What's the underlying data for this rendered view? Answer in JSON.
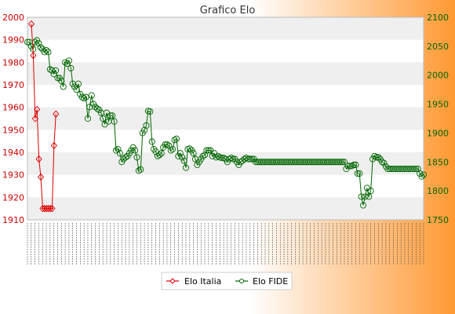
{
  "chart_data": {
    "type": "line",
    "title": "Grafico Elo",
    "y_left_range": [
      1910,
      2000
    ],
    "y_right_range": [
      1750,
      2100
    ],
    "y_left_ticks": [
      1910,
      1920,
      1930,
      1940,
      1950,
      1960,
      1970,
      1980,
      1990,
      2000
    ],
    "y_right_ticks": [
      1750,
      1800,
      1850,
      1900,
      1950,
      2000,
      2050,
      2100
    ],
    "grid": true,
    "legend_position": "bottom",
    "colors": {
      "elo_italia": "#dd0000",
      "elo_fide": "#006600",
      "band": "#efefef",
      "axis_left": "#cc0000",
      "axis_right": "#006600",
      "background_gradient_end": "#ff9933"
    },
    "series": [
      {
        "name": "Elo Italia",
        "axis": "left",
        "values": [
          1997,
          1983,
          1955,
          1959,
          1937,
          1929,
          1915,
          1915,
          1915,
          1915,
          1915,
          1915,
          1943,
          1957
        ]
      },
      {
        "name": "Elo FIDE",
        "axis": "right",
        "values": [
          2057,
          2057,
          2050,
          2045,
          2057,
          2060,
          2055,
          2048,
          2045,
          2040,
          2043,
          2040,
          2010,
          2008,
          2002,
          2008,
          1995,
          1995,
          1990,
          1980,
          2022,
          2020,
          2025,
          2012,
          1985,
          1980,
          1975,
          1985,
          1967,
          1962,
          1960,
          1962,
          1925,
          1945,
          1965,
          1950,
          1945,
          1942,
          1940,
          1935,
          1925,
          1915,
          1935,
          1920,
          1930,
          1930,
          1920,
          1870,
          1872,
          1865,
          1850,
          1855,
          1858,
          1860,
          1865,
          1870,
          1875,
          1870,
          1858,
          1835,
          1837,
          1900,
          1905,
          1913,
          1938,
          1937,
          1885,
          1872,
          1868,
          1860,
          1862,
          1865,
          1875,
          1880,
          1880,
          1878,
          1870,
          1872,
          1888,
          1890,
          1860,
          1865,
          1858,
          1852,
          1840,
          1872,
          1873,
          1870,
          1865,
          1855,
          1845,
          1850,
          1855,
          1860,
          1862,
          1870,
          1870,
          1870,
          1860,
          1865,
          1858,
          1860,
          1858,
          1857,
          1857,
          1855,
          1850,
          1855,
          1857,
          1855,
          1855,
          1850,
          1845,
          1850,
          1852,
          1855,
          1857,
          1855,
          1855,
          1855,
          1855,
          1850,
          1850,
          1850,
          1850,
          1850,
          1850,
          1850,
          1850,
          1850,
          1850,
          1850,
          1850,
          1850,
          1850,
          1850,
          1850,
          1850,
          1850,
          1850,
          1850,
          1850,
          1850,
          1850,
          1850,
          1850,
          1850,
          1850,
          1850,
          1850,
          1850,
          1850,
          1850,
          1850,
          1850,
          1850,
          1850,
          1850,
          1850,
          1850,
          1850,
          1850,
          1850,
          1850,
          1850,
          1850,
          1850,
          1850,
          1850,
          1838,
          1843,
          1843,
          1843,
          1845,
          1845,
          1830,
          1830,
          1790,
          1775,
          1790,
          1805,
          1790,
          1800,
          1855,
          1860,
          1858,
          1858,
          1855,
          1850,
          1848,
          1842,
          1838,
          1838,
          1838,
          1838,
          1838,
          1838,
          1838,
          1838,
          1838,
          1838,
          1838,
          1838,
          1838,
          1838,
          1838,
          1838,
          1838,
          1830,
          1825,
          1828
        ]
      }
    ]
  }
}
